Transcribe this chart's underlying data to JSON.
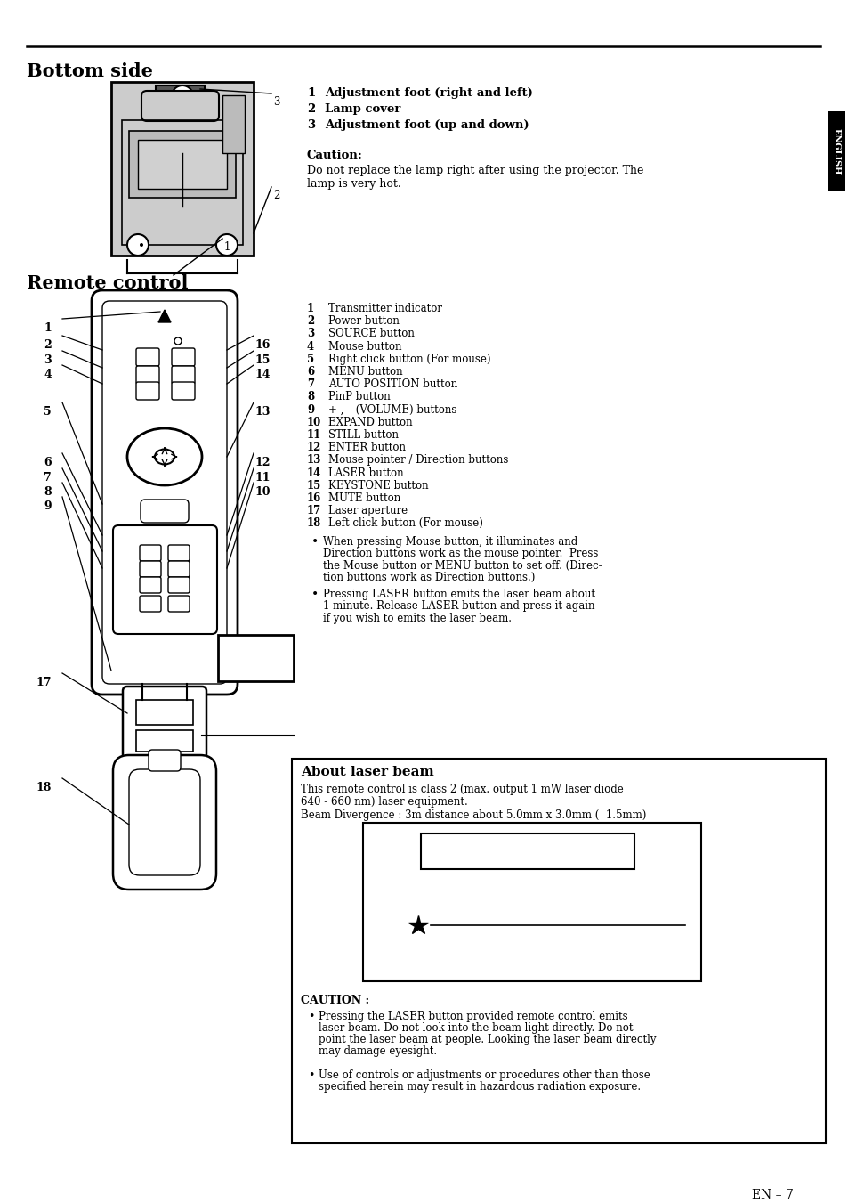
{
  "page_bg": "#ffffff",
  "title_bottom_side": "Bottom side",
  "title_remote_control": "Remote control",
  "bs_num": [
    "1",
    "2",
    "3"
  ],
  "bs_text": [
    "Adjustment foot (right and left)",
    "Lamp cover",
    "Adjustment foot (up and down)"
  ],
  "caution_title": "Caution:",
  "caution_line1": "Do not replace the lamp right after using the projector. The",
  "caution_line2": "lamp is very hot.",
  "rc_nums": [
    "1",
    "2",
    "3",
    "4",
    "5",
    "6",
    "7",
    "8",
    "9",
    "10",
    "11",
    "12",
    "13",
    "14",
    "15",
    "16",
    "17",
    "18"
  ],
  "rc_texts": [
    "Transmitter indicator",
    "Power button",
    "SOURCE button",
    "Mouse button",
    "Right click button (For mouse)",
    "MENU button",
    "AUTO POSITION button",
    "PinP button",
    "+ , – (VOLUME) buttons",
    "EXPAND button",
    "STILL button",
    "ENTER button",
    "Mouse pointer / Direction buttons",
    "LASER button",
    "KEYSTONE button",
    "MUTE button",
    "Laser aperture",
    "Left click button (For mouse)"
  ],
  "bullet1_lines": [
    "When pressing Mouse button, it illuminates and",
    "Direction buttons work as the mouse pointer.  Press",
    "the Mouse button or MENU button to set off. (Direc-",
    "tion buttons work as Direction buttons.)"
  ],
  "bullet2_lines": [
    "Pressing LASER button emits the laser beam about",
    "1 minute. Release LASER button and press it again",
    "if you wish to emits the laser beam."
  ],
  "laser_title": "About laser beam",
  "laser_t1": "This remote control is class 2 (max. output 1 mW laser diode",
  "laser_t2": "640 - 660 nm) laser equipment.",
  "laser_t3": "Beam Divergence : 3m distance about 5.0mm x 3.0mm (  1.5mm)",
  "caution2_title": "CAUTION :",
  "c2b1_lines": [
    "Pressing the LASER button provided remote control emits",
    "laser beam. Do not look into the beam light directly. Do not",
    "point the laser beam at people. Looking the laser beam directly",
    "may damage eyesight."
  ],
  "c2b2_lines": [
    "Use of controls or adjustments or procedures other than those",
    "specified herein may result in hazardous radiation exposure."
  ],
  "page_num": "EN – 7",
  "english_text": "ENGLISH"
}
